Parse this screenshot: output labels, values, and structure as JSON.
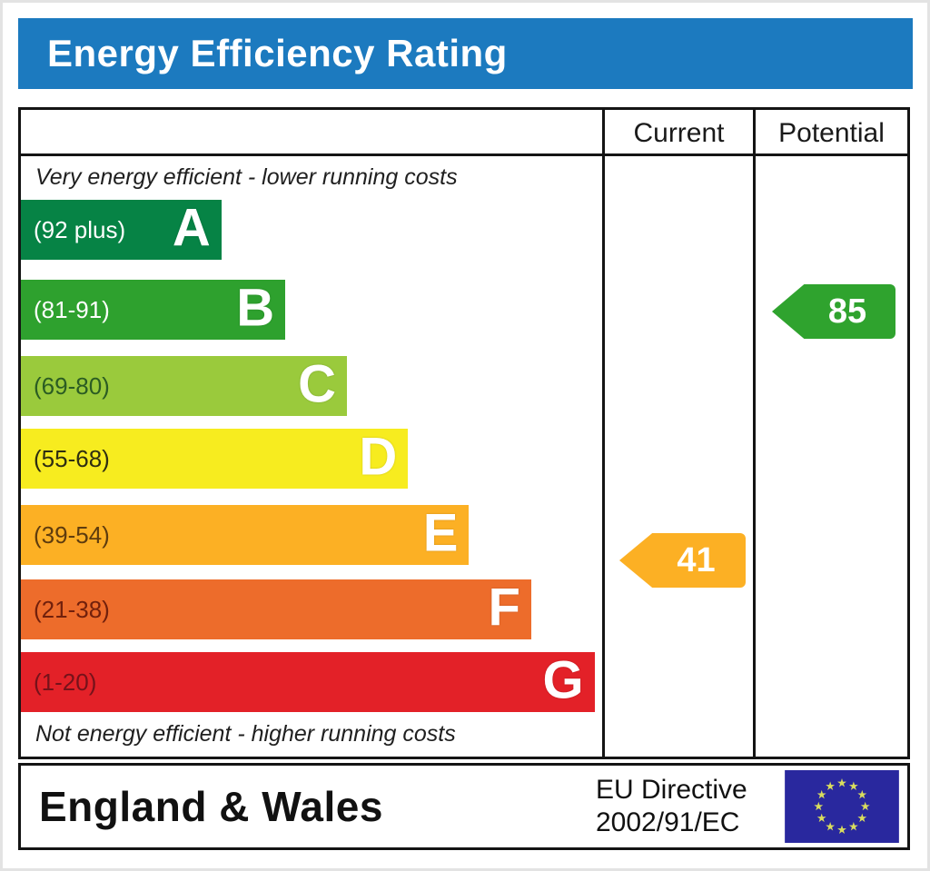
{
  "page": {
    "header_title": "Energy Efficiency Rating"
  },
  "columns": {
    "current_label": "Current",
    "potential_label": "Potential"
  },
  "notes": {
    "top": "Very energy efficient - lower running costs",
    "bottom": "Not energy efficient - higher running costs"
  },
  "chart_data": {
    "type": "bar",
    "title": "Energy Efficiency Rating",
    "categories": [
      "A",
      "B",
      "C",
      "D",
      "E",
      "F",
      "G"
    ],
    "bands": [
      {
        "letter": "A",
        "range_label": "(92 plus)",
        "min": 92,
        "max": 100,
        "color": "#068345",
        "label_color": "#ffffff",
        "width_pct": 34.5
      },
      {
        "letter": "B",
        "range_label": "(81-91)",
        "min": 81,
        "max": 91,
        "color": "#2ea12e",
        "label_color": "#ffffff",
        "width_pct": 45.5
      },
      {
        "letter": "C",
        "range_label": "(69-80)",
        "min": 69,
        "max": 80,
        "color": "#9aca3c",
        "label_color": "#2b5c23",
        "width_pct": 56.1
      },
      {
        "letter": "D",
        "range_label": "(55-68)",
        "min": 55,
        "max": 68,
        "color": "#f7ec1f",
        "label_color": "#2e2e12",
        "width_pct": 66.6
      },
      {
        "letter": "E",
        "range_label": "(39-54)",
        "min": 39,
        "max": 54,
        "color": "#fcb024",
        "label_color": "#5e3c0e",
        "width_pct": 77.1
      },
      {
        "letter": "F",
        "range_label": "(21-38)",
        "min": 21,
        "max": 38,
        "color": "#ed6c2b",
        "label_color": "#71200c",
        "width_pct": 87.8
      },
      {
        "letter": "G",
        "range_label": "(1-20)",
        "min": 1,
        "max": 20,
        "color": "#e32128",
        "label_color": "#75121a",
        "width_pct": 98.7
      }
    ],
    "current": {
      "value": 41,
      "band": "E",
      "arrow_color": "#fcb024"
    },
    "potential": {
      "value": 85,
      "band": "B",
      "arrow_color": "#2fa32e"
    },
    "legend_position": "none",
    "grid": false
  },
  "footer": {
    "region": "England & Wales",
    "directive_line1": "EU Directive",
    "directive_line2": "2002/91/EC",
    "eu_flag_icon": "eu-flag-icon"
  },
  "colors": {
    "header_bg": "#1c7abf",
    "table_border": "#141414",
    "eu_flag_blue": "#29289e",
    "eu_flag_star": "#d9dd5e"
  }
}
